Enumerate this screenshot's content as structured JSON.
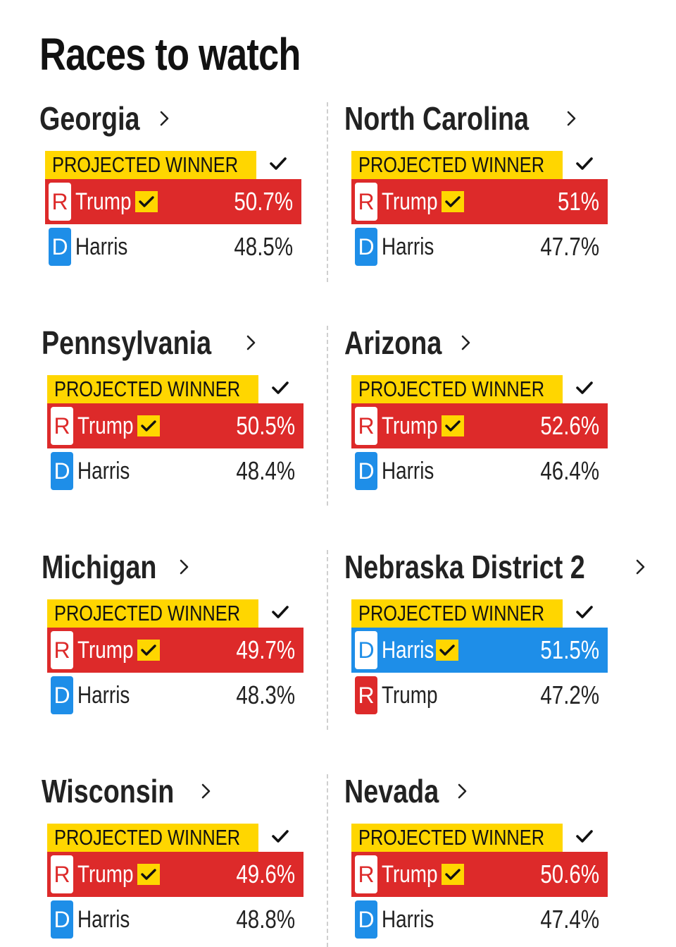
{
  "title": "Races to watch",
  "winner_label": "PROJECTED WINNER",
  "colors": {
    "republican": "#dd2a2a",
    "democrat": "#1e8ee8",
    "highlight": "#ffd600"
  },
  "icons": {
    "chevron": "chevron-right-icon",
    "check": "check-icon"
  },
  "races": [
    {
      "name": "Georgia",
      "winner": {
        "party": "R",
        "name": "Trump",
        "pct": "50.7%"
      },
      "other": {
        "party": "D",
        "name": "Harris",
        "pct": "48.5%"
      }
    },
    {
      "name": "North Carolina",
      "winner": {
        "party": "R",
        "name": "Trump",
        "pct": "51%"
      },
      "other": {
        "party": "D",
        "name": "Harris",
        "pct": "47.7%"
      }
    },
    {
      "name": "Pennsylvania",
      "winner": {
        "party": "R",
        "name": "Trump",
        "pct": "50.5%"
      },
      "other": {
        "party": "D",
        "name": "Harris",
        "pct": "48.4%"
      }
    },
    {
      "name": "Arizona",
      "winner": {
        "party": "R",
        "name": "Trump",
        "pct": "52.6%"
      },
      "other": {
        "party": "D",
        "name": "Harris",
        "pct": "46.4%"
      }
    },
    {
      "name": "Michigan",
      "winner": {
        "party": "R",
        "name": "Trump",
        "pct": "49.7%"
      },
      "other": {
        "party": "D",
        "name": "Harris",
        "pct": "48.3%"
      }
    },
    {
      "name": "Nebraska District 2",
      "winner": {
        "party": "D",
        "name": "Harris",
        "pct": "51.5%"
      },
      "other": {
        "party": "R",
        "name": "Trump",
        "pct": "47.2%"
      }
    },
    {
      "name": "Wisconsin",
      "winner": {
        "party": "R",
        "name": "Trump",
        "pct": "49.6%"
      },
      "other": {
        "party": "D",
        "name": "Harris",
        "pct": "48.8%"
      }
    },
    {
      "name": "Nevada",
      "winner": {
        "party": "R",
        "name": "Trump",
        "pct": "50.6%"
      },
      "other": {
        "party": "D",
        "name": "Harris",
        "pct": "47.4%"
      }
    }
  ]
}
